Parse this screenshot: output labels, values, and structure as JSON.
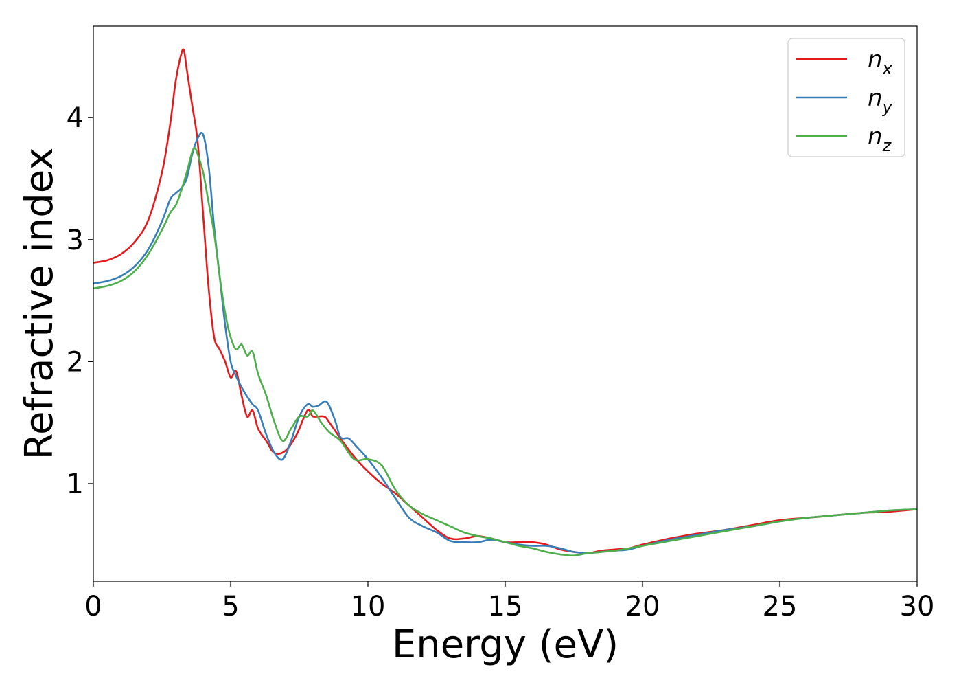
{
  "chart_data": {
    "type": "line",
    "title": "",
    "xlabel": "Energy (eV)",
    "ylabel": "Refractive index",
    "xlim": [
      0,
      30
    ],
    "ylim": [
      0.2,
      4.75
    ],
    "xticks": [
      0,
      5,
      10,
      15,
      20,
      25,
      30
    ],
    "yticks": [
      1,
      2,
      3,
      4
    ],
    "grid": false,
    "legend_position": "top-right",
    "series": [
      {
        "name": "n_x",
        "legend_base": "n",
        "legend_sub": "x",
        "color": "#e41a1c",
        "x": [
          0,
          0.5,
          1,
          1.5,
          2,
          2.5,
          2.8,
          3.0,
          3.2,
          3.3,
          3.4,
          3.6,
          3.8,
          4.0,
          4.2,
          4.4,
          4.6,
          4.8,
          5.0,
          5.2,
          5.4,
          5.6,
          5.8,
          6.0,
          6.3,
          6.6,
          7.0,
          7.4,
          7.8,
          8.0,
          8.4,
          8.6,
          9.0,
          9.5,
          10.0,
          10.5,
          11.0,
          11.5,
          12.0,
          12.5,
          13.0,
          13.5,
          14.0,
          14.5,
          15.0,
          15.5,
          16.0,
          16.5,
          17.0,
          17.5,
          18.0,
          18.5,
          19.0,
          19.5,
          20.0,
          21.0,
          22.0,
          23.0,
          24.0,
          25.0,
          26.0,
          27.0,
          28.0,
          29.0,
          30.0
        ],
        "y": [
          2.81,
          2.83,
          2.88,
          2.98,
          3.16,
          3.55,
          3.95,
          4.3,
          4.52,
          4.55,
          4.4,
          4.1,
          3.8,
          3.2,
          2.6,
          2.2,
          2.1,
          2.0,
          1.87,
          1.92,
          1.72,
          1.55,
          1.6,
          1.45,
          1.35,
          1.25,
          1.27,
          1.4,
          1.6,
          1.55,
          1.55,
          1.5,
          1.37,
          1.22,
          1.1,
          1.0,
          0.92,
          0.82,
          0.72,
          0.62,
          0.55,
          0.55,
          0.57,
          0.55,
          0.52,
          0.52,
          0.52,
          0.5,
          0.46,
          0.44,
          0.43,
          0.45,
          0.46,
          0.47,
          0.5,
          0.55,
          0.59,
          0.62,
          0.66,
          0.7,
          0.72,
          0.74,
          0.76,
          0.77,
          0.79
        ]
      },
      {
        "name": "n_y",
        "legend_base": "n",
        "legend_sub": "y",
        "color": "#377eb8",
        "x": [
          0,
          0.5,
          1,
          1.5,
          2,
          2.5,
          2.8,
          3.0,
          3.2,
          3.4,
          3.6,
          3.8,
          4.0,
          4.2,
          4.4,
          4.6,
          4.8,
          5.0,
          5.2,
          5.5,
          5.8,
          6.0,
          6.3,
          6.6,
          6.9,
          7.2,
          7.5,
          7.8,
          8.0,
          8.2,
          8.5,
          8.8,
          9.0,
          9.3,
          9.6,
          10.0,
          10.5,
          11.0,
          11.5,
          12.0,
          12.5,
          13.0,
          13.5,
          14.0,
          14.5,
          15.0,
          15.5,
          16.0,
          16.5,
          17.0,
          17.5,
          18.0,
          18.5,
          19.0,
          19.5,
          20.0,
          21.0,
          22.0,
          23.0,
          24.0,
          25.0,
          26.0,
          27.0,
          28.0,
          29.0,
          30.0
        ],
        "y": [
          2.64,
          2.66,
          2.7,
          2.78,
          2.92,
          3.15,
          3.33,
          3.38,
          3.42,
          3.5,
          3.7,
          3.83,
          3.86,
          3.6,
          3.1,
          2.7,
          2.3,
          2.0,
          1.88,
          1.75,
          1.65,
          1.6,
          1.4,
          1.25,
          1.2,
          1.35,
          1.55,
          1.65,
          1.63,
          1.64,
          1.67,
          1.52,
          1.38,
          1.37,
          1.3,
          1.2,
          1.05,
          0.88,
          0.72,
          0.65,
          0.6,
          0.53,
          0.52,
          0.52,
          0.54,
          0.52,
          0.5,
          0.49,
          0.49,
          0.47,
          0.44,
          0.43,
          0.44,
          0.45,
          0.46,
          0.49,
          0.54,
          0.58,
          0.62,
          0.65,
          0.69,
          0.72,
          0.74,
          0.76,
          0.78,
          0.79
        ]
      },
      {
        "name": "n_z",
        "legend_base": "n",
        "legend_sub": "z",
        "color": "#4daf4a",
        "x": [
          0,
          0.5,
          1,
          1.5,
          2,
          2.5,
          2.8,
          3.0,
          3.2,
          3.4,
          3.6,
          3.7,
          3.8,
          4.0,
          4.2,
          4.4,
          4.6,
          4.8,
          5.0,
          5.2,
          5.4,
          5.6,
          5.8,
          6.0,
          6.3,
          6.6,
          6.9,
          7.2,
          7.5,
          7.8,
          8.0,
          8.3,
          8.6,
          9.0,
          9.5,
          10.0,
          10.5,
          11.0,
          11.5,
          12.0,
          12.5,
          13.0,
          13.5,
          14.0,
          14.5,
          15.0,
          15.5,
          16.0,
          16.5,
          17.0,
          17.5,
          18.0,
          18.5,
          19.0,
          19.5,
          20.0,
          21.0,
          22.0,
          23.0,
          24.0,
          25.0,
          26.0,
          27.0,
          28.0,
          29.0,
          30.0
        ],
        "y": [
          2.6,
          2.62,
          2.66,
          2.74,
          2.88,
          3.08,
          3.22,
          3.28,
          3.4,
          3.55,
          3.72,
          3.75,
          3.7,
          3.55,
          3.3,
          3.05,
          2.7,
          2.4,
          2.2,
          2.1,
          2.14,
          2.05,
          2.08,
          1.9,
          1.72,
          1.5,
          1.35,
          1.45,
          1.55,
          1.55,
          1.6,
          1.5,
          1.42,
          1.35,
          1.2,
          1.2,
          1.15,
          0.95,
          0.82,
          0.75,
          0.7,
          0.65,
          0.6,
          0.57,
          0.55,
          0.52,
          0.49,
          0.47,
          0.44,
          0.42,
          0.41,
          0.43,
          0.44,
          0.45,
          0.47,
          0.49,
          0.53,
          0.57,
          0.61,
          0.65,
          0.69,
          0.72,
          0.74,
          0.76,
          0.78,
          0.79
        ]
      }
    ]
  }
}
